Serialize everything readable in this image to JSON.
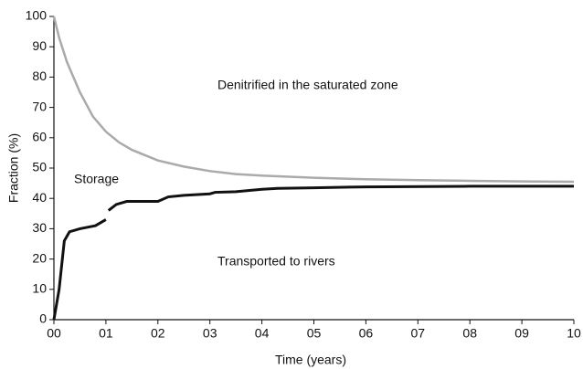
{
  "chart_data": {
    "type": "line",
    "xlabel": "Time (years)",
    "ylabel": "Fraction (%)",
    "annotations": [
      "Denitrified in the saturated zone",
      "Storage",
      "Transported to rivers"
    ],
    "series": [
      {
        "color": "#aaaaaa",
        "width": 2.5,
        "x": [
          0,
          0.1,
          0.25,
          0.5,
          0.75,
          1,
          1.25,
          1.5,
          2,
          2.5,
          3,
          3.5,
          4,
          5,
          6,
          7,
          8,
          9,
          10
        ],
        "values": [
          100,
          93,
          85,
          75,
          67,
          62,
          58.5,
          56,
          52.5,
          50.5,
          49,
          48,
          47.5,
          46.8,
          46.3,
          46,
          45.8,
          45.6,
          45.5
        ]
      },
      {
        "color": "#111111",
        "width": 3,
        "x": [
          0,
          0.05,
          0.1,
          0.15,
          0.2,
          0.3,
          0.5,
          0.8,
          1,
          1.02,
          1.05,
          1.2,
          1.4,
          2,
          2.2,
          2.5,
          3,
          3.1,
          3.5,
          4,
          4.3,
          5,
          6,
          8,
          10
        ],
        "values": [
          0,
          5,
          10,
          18,
          26,
          29,
          30,
          31,
          33,
          null,
          36,
          38,
          39,
          39,
          40.5,
          41,
          41.5,
          42,
          42.2,
          43,
          43.3,
          43.5,
          43.8,
          44,
          44
        ]
      }
    ],
    "xlim": [
      0,
      10
    ],
    "xticks": [
      {
        "value": 0,
        "label": "00"
      },
      {
        "value": 1,
        "label": "01"
      },
      {
        "value": 2,
        "label": "02"
      },
      {
        "value": 3,
        "label": "03"
      },
      {
        "value": 4,
        "label": "04"
      },
      {
        "value": 5,
        "label": "05"
      },
      {
        "value": 6,
        "label": "06"
      },
      {
        "value": 7,
        "label": "07"
      },
      {
        "value": 8,
        "label": "08"
      },
      {
        "value": 9,
        "label": "09"
      },
      10
    ],
    "ylim": [
      0,
      100
    ],
    "yticks": [
      0,
      10,
      20,
      30,
      40,
      50,
      60,
      70,
      80,
      90,
      100
    ],
    "grid": false
  }
}
